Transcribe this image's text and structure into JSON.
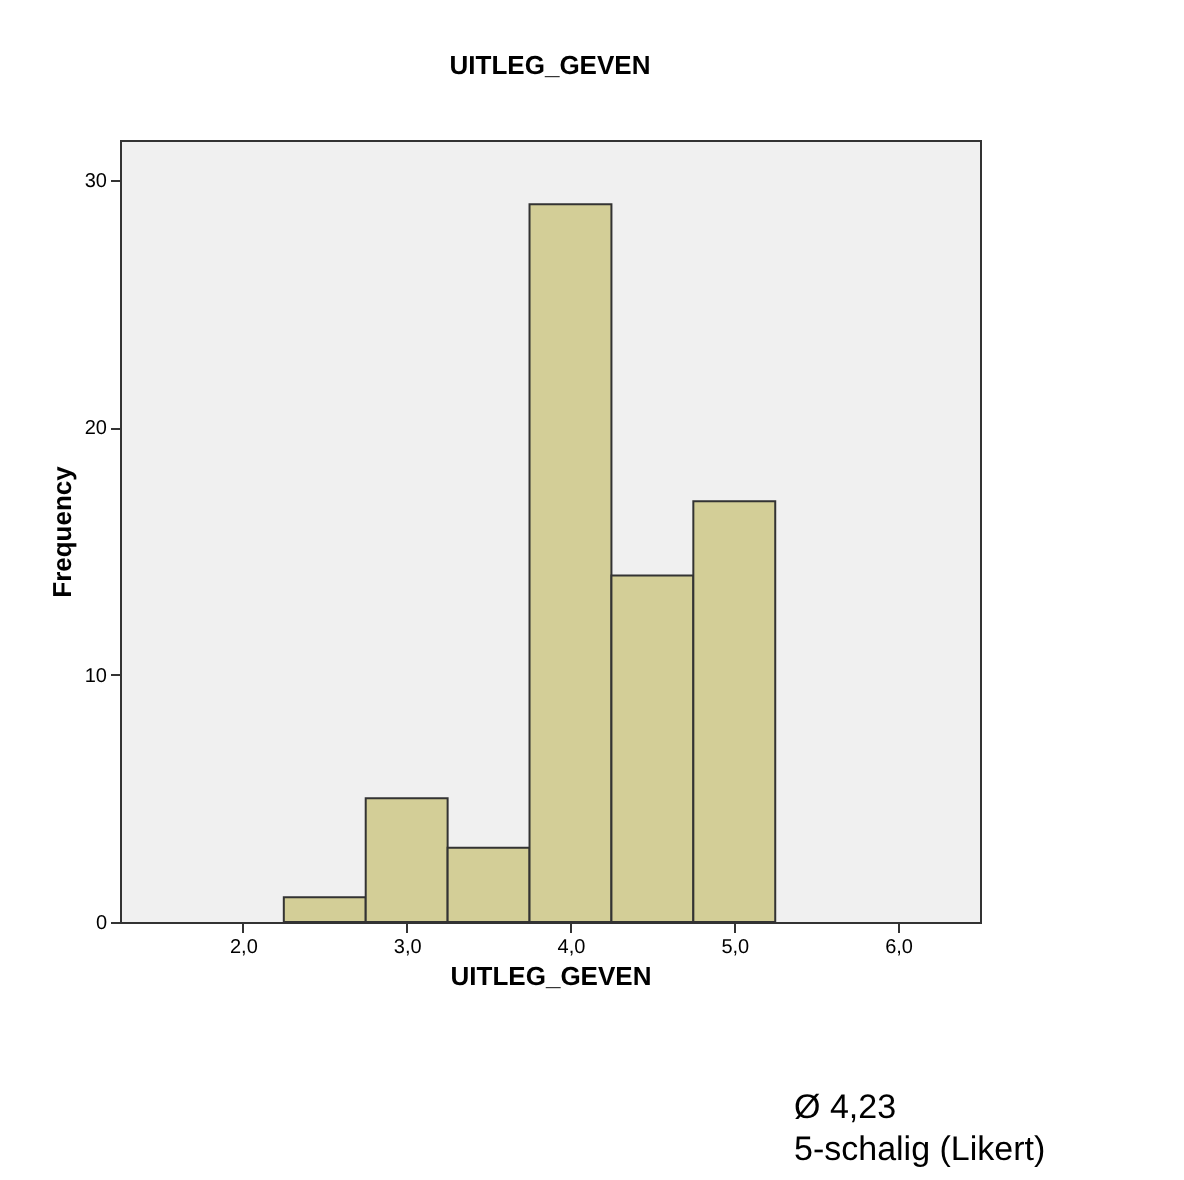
{
  "chart_data": {
    "type": "histogram",
    "title": "UITLEG_GEVEN",
    "xlabel": "UITLEG_GEVEN",
    "ylabel": "Frequency",
    "bins": [
      2.25,
      2.75,
      3.25,
      3.75,
      4.25,
      4.75,
      5.25
    ],
    "values": [
      1,
      5,
      3,
      29,
      14,
      17
    ],
    "color": "#d3ce97",
    "xlim": [
      1.25,
      6.5
    ],
    "xticks": [
      {
        "value": 2,
        "label": "2,0"
      },
      {
        "value": 3,
        "label": "3,0"
      },
      {
        "value": 4,
        "label": "4,0"
      },
      {
        "value": 5,
        "label": "5,0"
      },
      {
        "value": 6,
        "label": "6,0"
      }
    ],
    "ylim": [
      0,
      31.6
    ],
    "yticks": [
      0,
      10,
      20,
      30
    ],
    "grid": false,
    "annotations": [
      "Ø 4,23",
      "5-schalig (Likert)"
    ]
  }
}
